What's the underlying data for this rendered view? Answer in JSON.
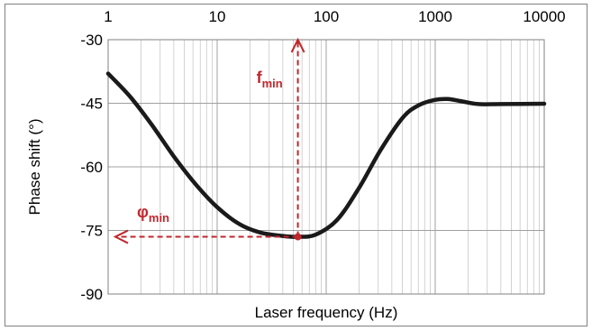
{
  "chart_data": {
    "type": "line",
    "xlabel": "Laser frequency (Hz)",
    "ylabel": "Phase shift   (°)",
    "x_scale": "log",
    "xlim": [
      1,
      10000
    ],
    "ylim": [
      -90,
      -30
    ],
    "x_ticks": [
      {
        "value": 1,
        "label": "1"
      },
      {
        "value": 10,
        "label": "10"
      },
      {
        "value": 100,
        "label": "100"
      },
      {
        "value": 1000,
        "label": "1000"
      },
      {
        "value": 10000,
        "label": "10000"
      }
    ],
    "y_ticks": [
      {
        "value": -30,
        "label": "-30"
      },
      {
        "value": -45,
        "label": "-45"
      },
      {
        "value": -60,
        "label": "-60"
      },
      {
        "value": -75,
        "label": "-75"
      },
      {
        "value": -90,
        "label": "-90"
      }
    ],
    "x_axis_position": "top",
    "grid": true,
    "minor_grid_x": true,
    "series": [
      {
        "color": "#1a1a1a",
        "points": [
          [
            1,
            -38.0
          ],
          [
            1.6,
            -43.5
          ],
          [
            2.5,
            -50.0
          ],
          [
            4,
            -57.5
          ],
          [
            6.3,
            -64.0
          ],
          [
            10,
            -69.5
          ],
          [
            16,
            -73.5
          ],
          [
            25,
            -75.5
          ],
          [
            40,
            -76.3
          ],
          [
            55,
            -76.5
          ],
          [
            80,
            -76.0
          ],
          [
            126,
            -72.5
          ],
          [
            200,
            -65.0
          ],
          [
            316,
            -56.0
          ],
          [
            500,
            -48.5
          ],
          [
            700,
            -45.5
          ],
          [
            1000,
            -44.2
          ],
          [
            1300,
            -44.0
          ],
          [
            1800,
            -44.6
          ],
          [
            2500,
            -45.2
          ],
          [
            4000,
            -45.2
          ],
          [
            10000,
            -45.1
          ]
        ]
      }
    ],
    "annotations": [
      {
        "kind": "vertical-arrow",
        "x": 55,
        "y_from": -76.5,
        "y_to": -30,
        "color": "#c0272d",
        "label": "f",
        "subscript": "min"
      },
      {
        "kind": "horizontal-arrow",
        "y": -76.5,
        "x_from": 55,
        "x_to": 1,
        "color": "#c0272d",
        "label": "φ",
        "subscript": "min"
      },
      {
        "kind": "marker",
        "x": 55,
        "y": -76.5,
        "color": "#c0272d"
      }
    ],
    "colors": {
      "curve": "#1a1a1a",
      "annotation": "#c0272d",
      "grid": "#c8c8c8",
      "frame": "#808080"
    }
  }
}
